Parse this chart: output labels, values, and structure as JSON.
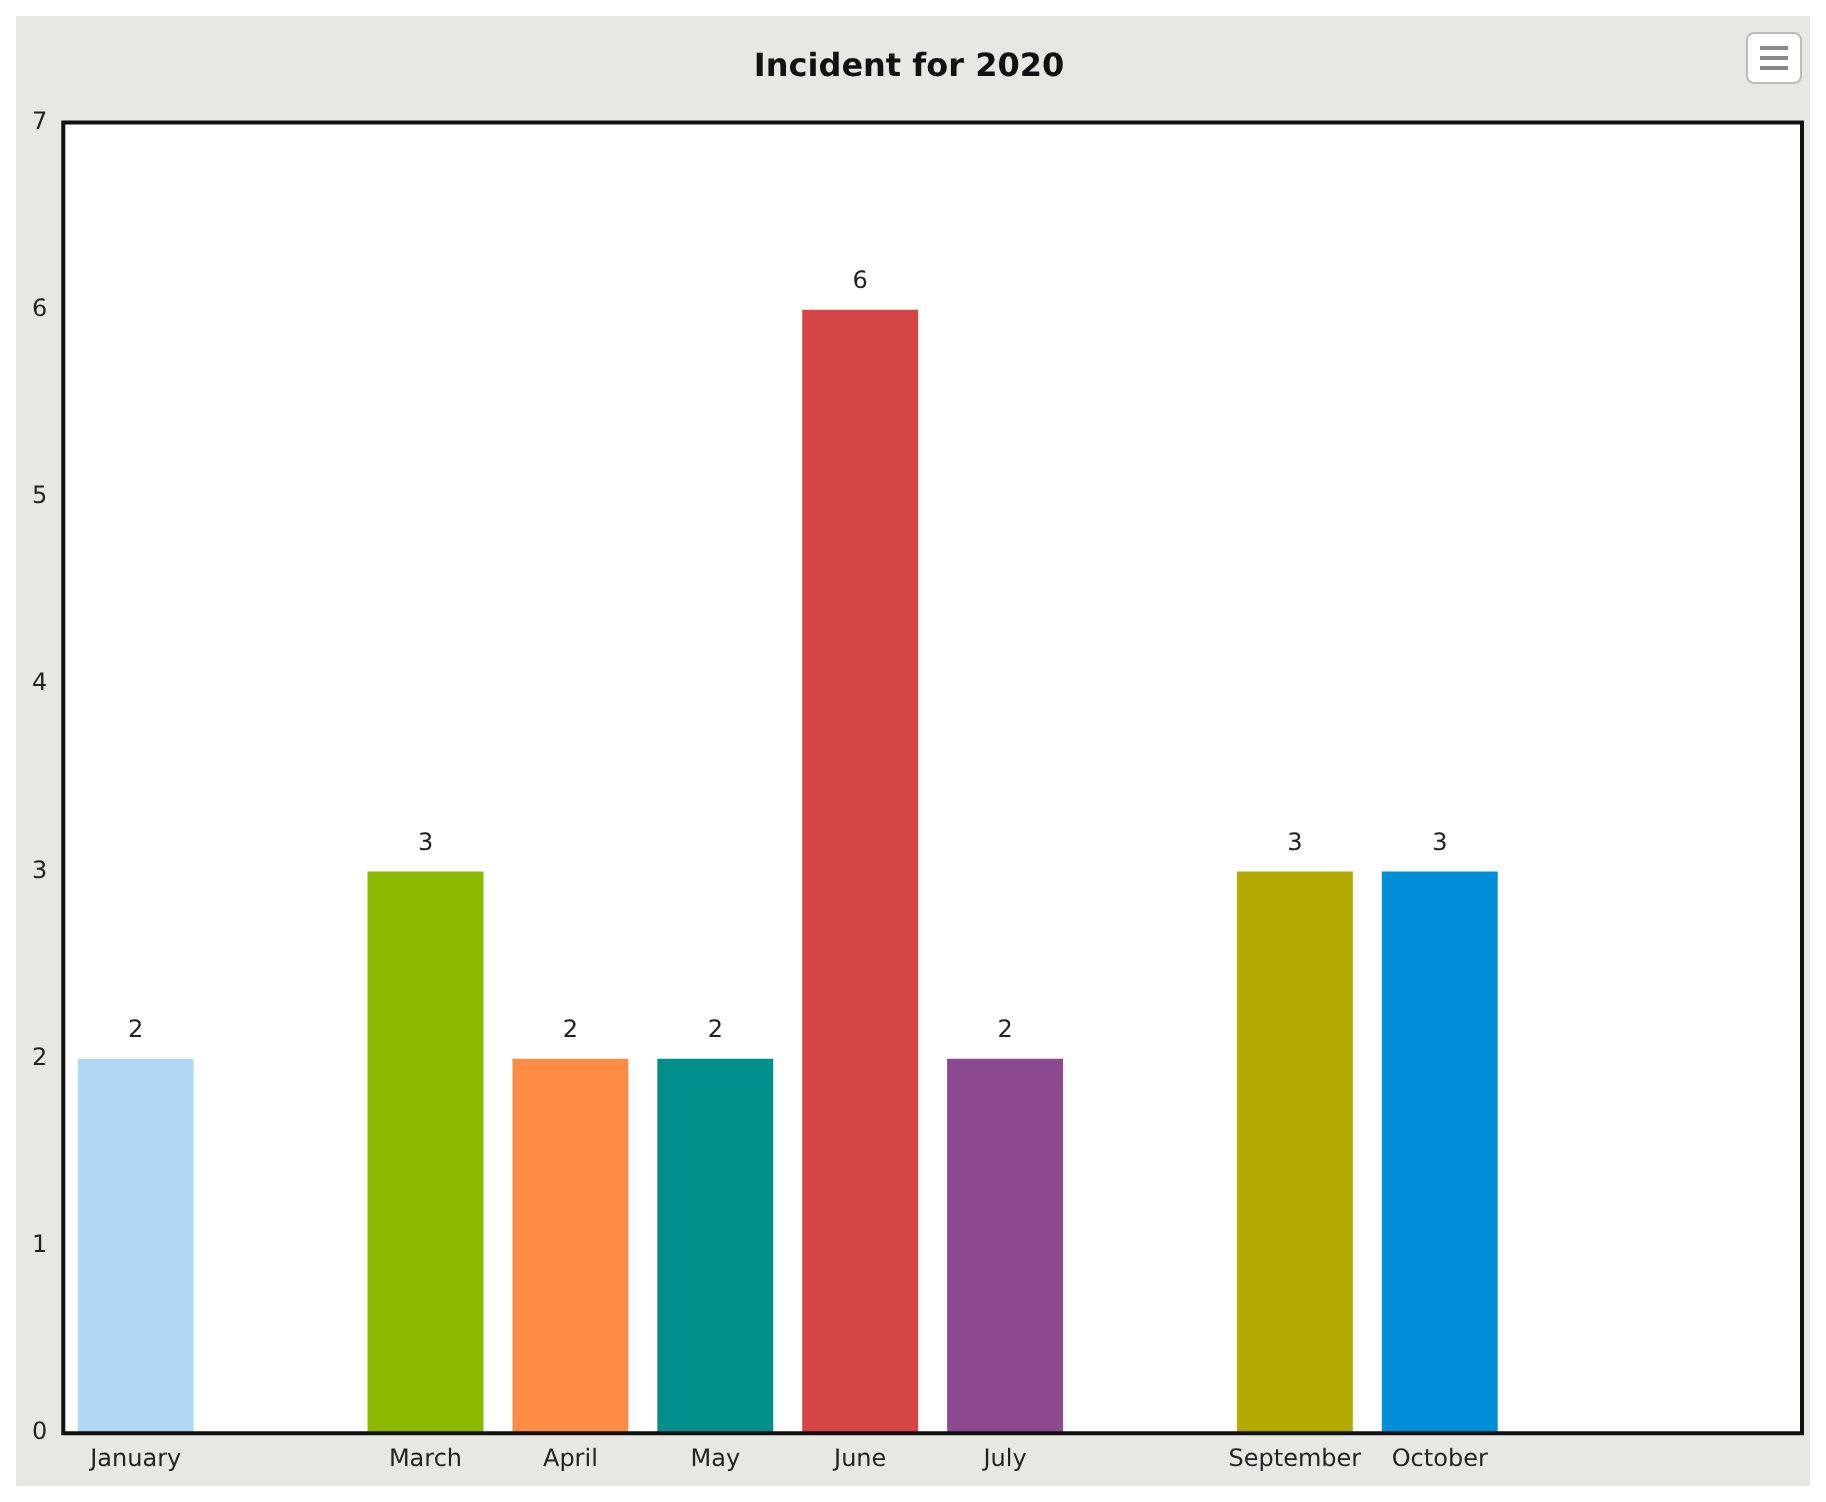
{
  "chart_data": {
    "type": "bar",
    "title": "Incident for 2020",
    "categories": [
      "January",
      null,
      "March",
      "April",
      "May",
      "June",
      "July",
      null,
      "September",
      "October",
      null,
      null
    ],
    "values": [
      2,
      null,
      3,
      2,
      2,
      6,
      2,
      null,
      3,
      3,
      null,
      null
    ],
    "colors": [
      "#b0d8f5",
      "#cccccc",
      "#8cb800",
      "#ff8c45",
      "#008f8a",
      "#d64545",
      "#8b4a8f",
      "#cccccc",
      "#b3aa00",
      "#008fd6",
      "#cccccc",
      "#cccccc"
    ],
    "ylim": [
      0,
      7
    ],
    "yticks": [
      0,
      1,
      2,
      3,
      4,
      5,
      6,
      7
    ],
    "grid": false,
    "legend": false,
    "data_labels": true
  }
}
